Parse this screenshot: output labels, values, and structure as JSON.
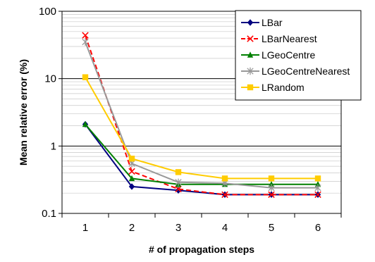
{
  "chart_data": {
    "type": "line",
    "xlabel": "# of propagation steps",
    "ylabel": "Mean relative error (%)",
    "y_scale": "log",
    "ylim": [
      0.1,
      100
    ],
    "yticks": [
      {
        "value": 0.1,
        "label": "0.1"
      },
      {
        "value": 1,
        "label": "1"
      },
      {
        "value": 10,
        "label": "10"
      },
      {
        "value": 100,
        "label": "100"
      }
    ],
    "categories": [
      "1",
      "2",
      "3",
      "4",
      "5",
      "6"
    ],
    "grid": {
      "major": true,
      "minor": true
    },
    "legend_position": "top-right",
    "series": [
      {
        "name": "LBar",
        "color": "#000080",
        "marker": "diamond",
        "dash": "solid",
        "values": [
          2.1,
          0.25,
          0.22,
          0.19,
          0.19,
          0.19
        ]
      },
      {
        "name": "LBarNearest",
        "color": "#ff0000",
        "marker": "x",
        "dash": "dashed",
        "values": [
          44,
          0.42,
          0.23,
          0.19,
          0.19,
          0.19
        ]
      },
      {
        "name": "LGeoCentre",
        "color": "#008000",
        "marker": "triangle",
        "dash": "solid",
        "values": [
          2.1,
          0.33,
          0.27,
          0.27,
          0.27,
          0.27
        ]
      },
      {
        "name": "LGeoCentreNearest",
        "color": "#999999",
        "marker": "asterisk",
        "dash": "solid",
        "values": [
          35,
          0.55,
          0.29,
          0.28,
          0.24,
          0.24
        ]
      },
      {
        "name": "LRandom",
        "color": "#ffcc00",
        "marker": "square",
        "dash": "solid",
        "values": [
          10.5,
          0.65,
          0.41,
          0.33,
          0.33,
          0.33
        ]
      }
    ]
  }
}
